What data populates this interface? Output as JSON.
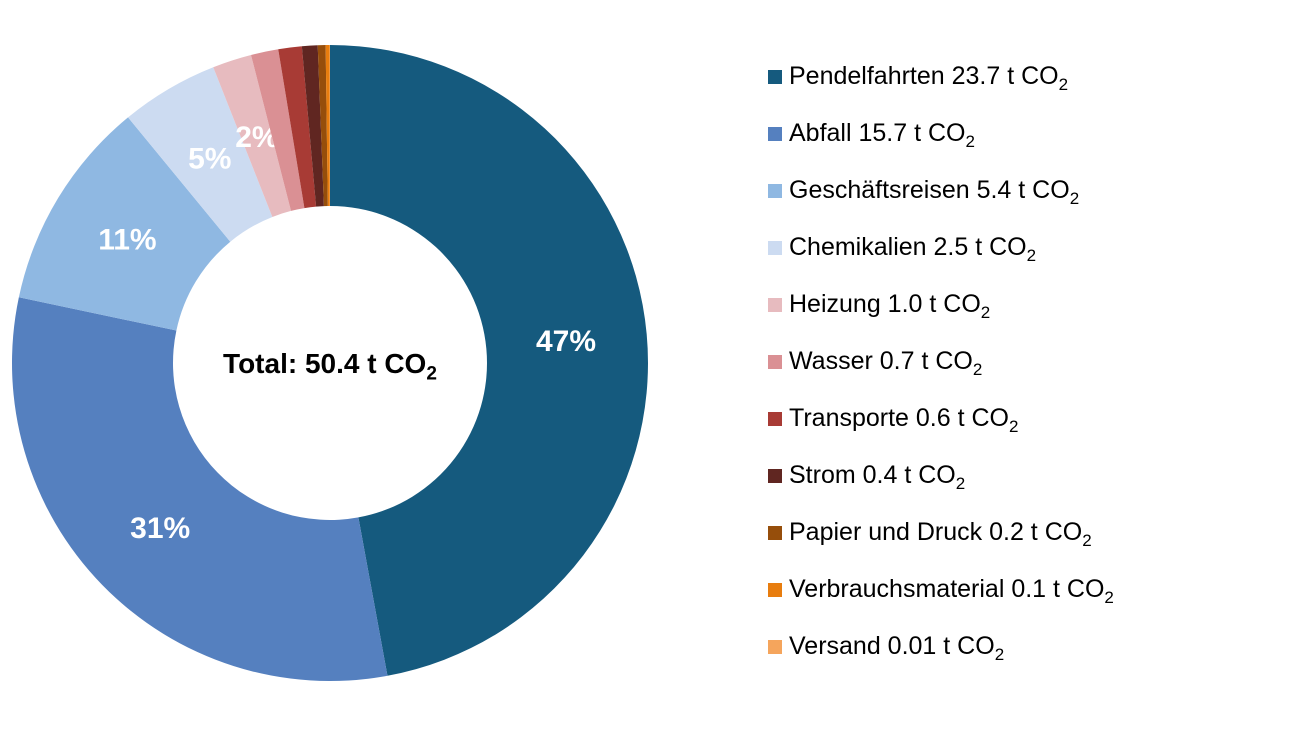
{
  "chart_data": {
    "type": "donut",
    "title": "",
    "center_label": "Total: 50.4 t CO₂",
    "total_value": "50.4",
    "unit": "t CO₂",
    "legend_position": "right",
    "percent_label_color": "#FFFFFF",
    "background": "#FFFFFF",
    "segments": [
      {
        "name": "Pendelfahrten",
        "value": "23.7",
        "percent_label": "47%",
        "color": "#155A7E"
      },
      {
        "name": "Abfall",
        "value": "15.7",
        "percent_label": "31%",
        "color": "#5580BF"
      },
      {
        "name": "Geschäftsreisen",
        "value": "5.4",
        "percent_label": "11%",
        "color": "#8FB8E2"
      },
      {
        "name": "Chemikalien",
        "value": "2.5",
        "percent_label": "5%",
        "color": "#CCDBF1"
      },
      {
        "name": "Heizung",
        "value": "1.0",
        "percent_label": "2%",
        "color": "#E7BBBF"
      },
      {
        "name": "Wasser",
        "value": "0.7",
        "percent_label": "",
        "color": "#DA9094"
      },
      {
        "name": "Transporte",
        "value": "0.6",
        "percent_label": "",
        "color": "#A83B35"
      },
      {
        "name": "Strom",
        "value": "0.4",
        "percent_label": "",
        "color": "#602621"
      },
      {
        "name": "Papier und Druck",
        "value": "0.2",
        "percent_label": "",
        "color": "#964E0B"
      },
      {
        "name": "Verbrauchsmaterial",
        "value": "0.1",
        "percent_label": "",
        "color": "#E87D0E"
      },
      {
        "name": "Versand",
        "value": "0.01",
        "percent_label": "",
        "color": "#F5A55C"
      }
    ]
  }
}
